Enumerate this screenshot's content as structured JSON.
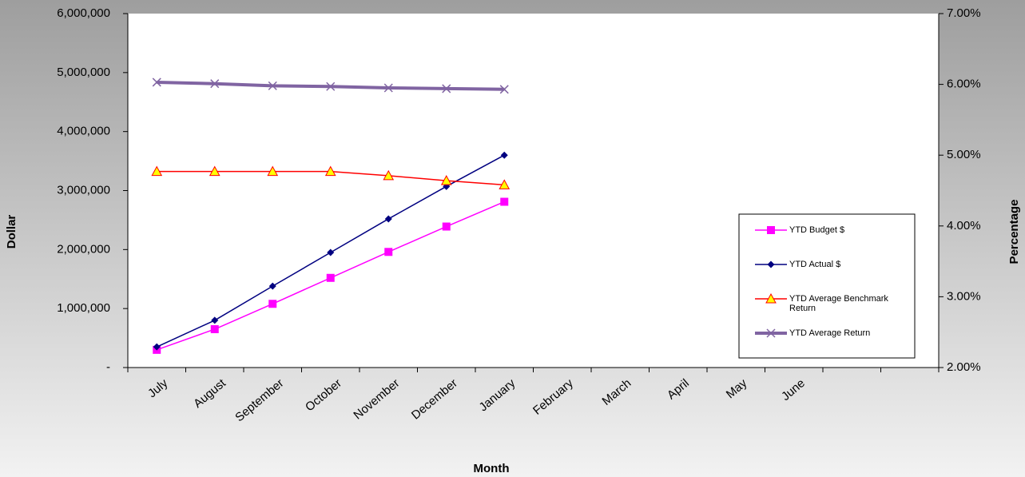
{
  "chart_data": {
    "type": "line",
    "categories": [
      "July",
      "August",
      "September",
      "October",
      "November",
      "December",
      "January",
      "February",
      "March",
      "April",
      "May",
      "June",
      null,
      null
    ],
    "series": [
      {
        "name": "YTD   Budget $",
        "color": "#ff00ff",
        "marker": "square",
        "axis": "y",
        "values": [
          300000,
          650000,
          1080000,
          1520000,
          1960000,
          2390000,
          2810000,
          null,
          null,
          null,
          null,
          null,
          null,
          null
        ]
      },
      {
        "name": "YTD  Actual $",
        "color": "#000080",
        "marker": "diamond",
        "axis": "y",
        "values": [
          350000,
          800000,
          1380000,
          1950000,
          2520000,
          3070000,
          3600000,
          null,
          null,
          null,
          null,
          null,
          null,
          null
        ]
      },
      {
        "name": "YTD  Average Benchmark Return",
        "color": "#ff0000",
        "marker": "triangle",
        "axis": "y2",
        "values": [
          4.77,
          4.77,
          4.77,
          4.77,
          4.71,
          4.64,
          4.58,
          null,
          null,
          null,
          null,
          null,
          null,
          null
        ]
      },
      {
        "name": "YTD  Average Return",
        "color": "#8064a2",
        "marker": "x",
        "axis": "y2",
        "values": [
          6.03,
          6.01,
          5.98,
          5.97,
          5.95,
          5.94,
          5.93,
          null,
          null,
          null,
          null,
          null,
          null,
          null
        ]
      }
    ],
    "xlabel": "Month",
    "ylabel": "Dollar",
    "y2label": "Percentage",
    "ylim": [
      0,
      6000000
    ],
    "yticks": [
      {
        "value": 0,
        "label": "-"
      },
      {
        "value": 1000000,
        "label": "1,000,000"
      },
      {
        "value": 2000000,
        "label": "2,000,000"
      },
      {
        "value": 3000000,
        "label": "3,000,000"
      },
      {
        "value": 4000000,
        "label": "4,000,000"
      },
      {
        "value": 5000000,
        "label": "5,000,000"
      },
      {
        "value": 6000000,
        "label": "6,000,000"
      }
    ],
    "y2lim": [
      2,
      7
    ],
    "y2ticks": [
      {
        "value": 2,
        "label": "2.00%"
      },
      {
        "value": 3,
        "label": "3.00%"
      },
      {
        "value": 4,
        "label": "4.00%"
      },
      {
        "value": 5,
        "label": "5.00%"
      },
      {
        "value": 6,
        "label": "6.00%"
      },
      {
        "value": 7,
        "label": "7.00%"
      }
    ],
    "legend": "right",
    "grid": false
  }
}
